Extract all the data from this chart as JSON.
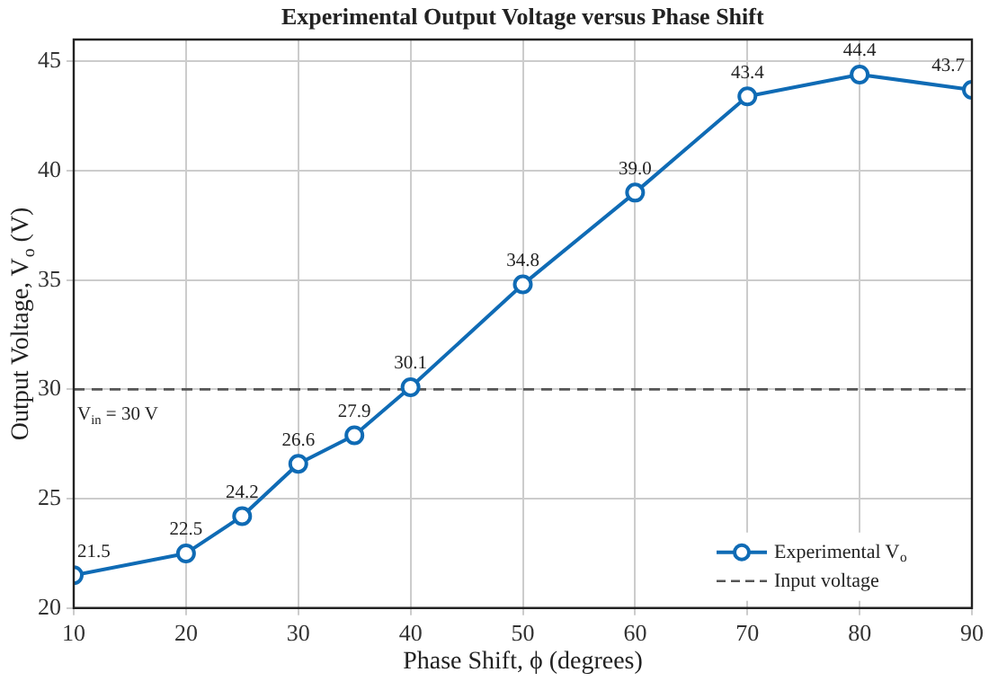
{
  "chart_data": {
    "type": "line",
    "title": "Experimental Output Voltage versus Phase Shift",
    "xlabel": "Phase Shift, ϕ (degrees)",
    "ylabel": "Output Voltage, V$_{o}$ (V)",
    "x": [
      10,
      20,
      25,
      30,
      35,
      40,
      50,
      60,
      70,
      80,
      90
    ],
    "series": [
      {
        "name": "Experimental V$_{o}$",
        "color": "#0f6bb5",
        "values": [
          21.5,
          22.5,
          24.2,
          26.6,
          27.9,
          30.1,
          34.8,
          39.0,
          43.4,
          44.4,
          43.7
        ]
      }
    ],
    "value_labels": [
      "21.5",
      "22.5",
      "24.2",
      "26.6",
      "27.9",
      "30.1",
      "34.8",
      "39.0",
      "43.4",
      "44.4",
      "43.7"
    ],
    "xlim": [
      10,
      90
    ],
    "xticks": [
      10,
      20,
      30,
      40,
      50,
      60,
      70,
      80,
      90
    ],
    "ylim": [
      20,
      46
    ],
    "yticks": [
      20,
      25,
      30,
      35,
      40,
      45
    ],
    "ref_lines": [
      {
        "axis": "y",
        "value": 30,
        "label": "Input voltage",
        "color": "#555555",
        "line_style": "dashed"
      }
    ],
    "annotations": [
      {
        "text": "V$_{in}$ = 30 V",
        "x": 10,
        "y": 30
      }
    ],
    "grid": true,
    "legend": "bottom right",
    "marker": "circle",
    "line_style": "solid"
  }
}
